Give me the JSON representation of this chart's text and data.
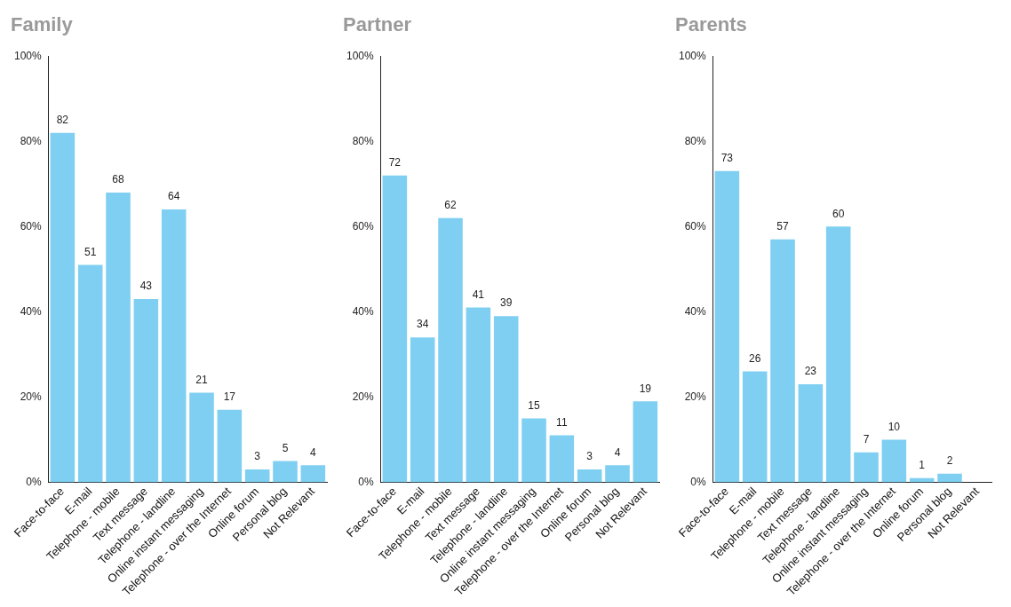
{
  "chart_data": [
    {
      "type": "bar",
      "title": "Family",
      "categories": [
        "Face-to-face",
        "E-mail",
        "Telephone - mobile",
        "Text message",
        "Telephone - landline",
        "Online instant messaging",
        "Telephone - over the Internet",
        "Online forum",
        "Personal blog",
        "Not Relevant"
      ],
      "values": [
        82,
        51,
        68,
        43,
        64,
        21,
        17,
        3,
        5,
        4
      ],
      "color": "#7fcff2",
      "ylim": [
        0,
        100
      ],
      "yticks": [
        {
          "value": 0,
          "label": "0%"
        },
        {
          "value": 20,
          "label": "20%"
        },
        {
          "value": 40,
          "label": "40%"
        },
        {
          "value": 60,
          "label": "60%"
        },
        {
          "value": 80,
          "label": "80%"
        },
        {
          "value": 100,
          "label": "100%"
        }
      ],
      "grid": false,
      "data_labels": true
    },
    {
      "type": "bar",
      "title": "Partner",
      "categories": [
        "Face-to-face",
        "E-mail",
        "Telephone - mobile",
        "Text message",
        "Telephone - landline",
        "Online instant messaging",
        "Telephone - over the Internet",
        "Online forum",
        "Personal blog",
        "Not Relevant"
      ],
      "values": [
        72,
        34,
        62,
        41,
        39,
        15,
        11,
        3,
        4,
        19
      ],
      "color": "#7fcff2",
      "ylim": [
        0,
        100
      ],
      "yticks": [
        {
          "value": 0,
          "label": "0%"
        },
        {
          "value": 20,
          "label": "20%"
        },
        {
          "value": 40,
          "label": "40%"
        },
        {
          "value": 60,
          "label": "60%"
        },
        {
          "value": 80,
          "label": "80%"
        },
        {
          "value": 100,
          "label": "100%"
        }
      ],
      "grid": false,
      "data_labels": true
    },
    {
      "type": "bar",
      "title": "Parents",
      "categories": [
        "Face-to-face",
        "E-mail",
        "Telephone - mobile",
        "Text message",
        "Telephone - landline",
        "Online instant messaging",
        "Telephone - over the Internet",
        "Online forum",
        "Personal blog",
        "Not Relevant"
      ],
      "values": [
        73,
        26,
        57,
        23,
        60,
        7,
        10,
        1,
        2,
        null
      ],
      "color": "#7fcff2",
      "ylim": [
        0,
        100
      ],
      "yticks": [
        {
          "value": 0,
          "label": "0%"
        },
        {
          "value": 20,
          "label": "20%"
        },
        {
          "value": 40,
          "label": "40%"
        },
        {
          "value": 60,
          "label": "60%"
        },
        {
          "value": 80,
          "label": "80%"
        },
        {
          "value": 100,
          "label": "100%"
        }
      ],
      "grid": false,
      "data_labels": true
    }
  ]
}
